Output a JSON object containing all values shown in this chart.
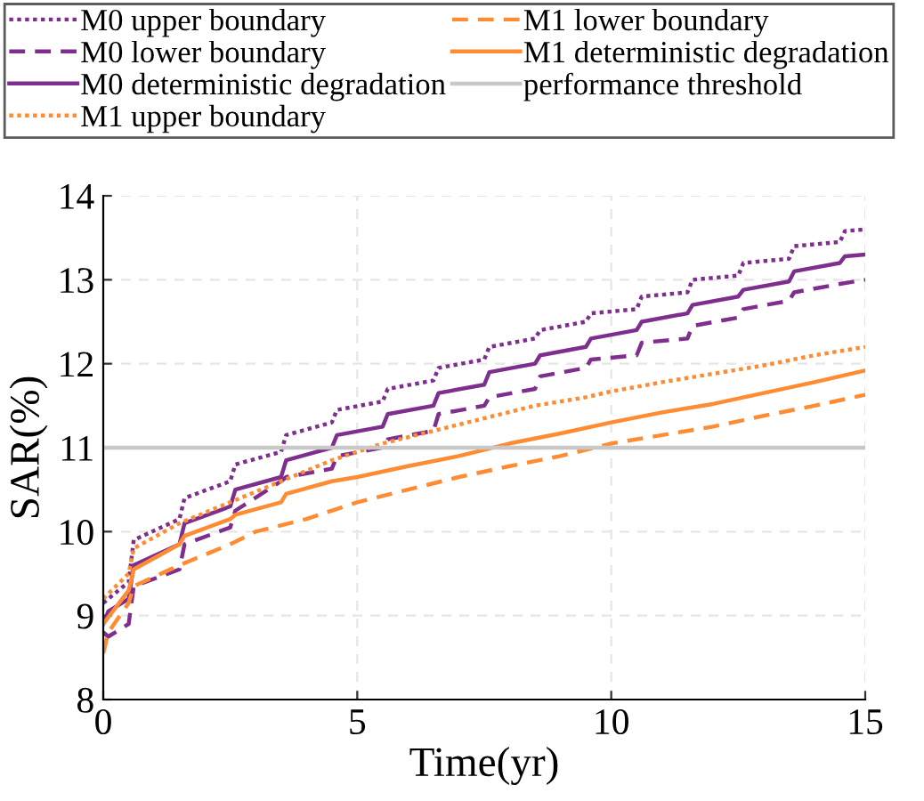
{
  "chart_data": {
    "type": "line",
    "xlabel": "Time(yr)",
    "ylabel": "SAR(%)",
    "xlim": [
      0,
      15
    ],
    "xticks": [
      0,
      5,
      10,
      15
    ],
    "ylim": [
      8,
      14
    ],
    "yticks": [
      8,
      9,
      10,
      11,
      12,
      13,
      14
    ],
    "grid": true,
    "legend": "top",
    "marker": "none",
    "series": [
      {
        "name": "M0 upper boundary",
        "color": "#7e2f8e",
        "line_style": "dotted",
        "x": [
          0,
          0.5,
          0.6,
          1.5,
          1.6,
          2.5,
          2.6,
          3.5,
          3.6,
          4.5,
          4.6,
          5.5,
          5.6,
          6.5,
          6.6,
          7.5,
          7.6,
          8.5,
          8.6,
          9.5,
          9.6,
          10.5,
          10.6,
          11.5,
          11.6,
          12.5,
          12.6,
          13.5,
          13.6,
          14.5,
          14.6,
          15
        ],
        "values": [
          9.15,
          9.4,
          9.9,
          10.15,
          10.4,
          10.6,
          10.8,
          10.95,
          11.15,
          11.3,
          11.45,
          11.55,
          11.7,
          11.8,
          11.95,
          12.05,
          12.2,
          12.3,
          12.4,
          12.5,
          12.6,
          12.65,
          12.8,
          12.85,
          13.0,
          13.05,
          13.2,
          13.25,
          13.4,
          13.45,
          13.58,
          13.6
        ]
      },
      {
        "name": "M0 lower boundary",
        "color": "#7e2f8e",
        "line_style": "dashed",
        "x": [
          0,
          0.1,
          0.5,
          0.6,
          1.5,
          1.6,
          2.5,
          2.6,
          3.5,
          3.6,
          4.5,
          4.6,
          5.5,
          5.6,
          6.5,
          6.6,
          7.5,
          7.6,
          8.5,
          8.6,
          9.5,
          9.6,
          10.5,
          10.6,
          11.5,
          11.6,
          12.5,
          12.6,
          13.5,
          13.6,
          14.5,
          15
        ],
        "values": [
          8.8,
          8.75,
          8.9,
          9.35,
          9.55,
          9.85,
          10.05,
          10.25,
          10.6,
          10.65,
          10.75,
          10.9,
          11.0,
          11.1,
          11.2,
          11.4,
          11.5,
          11.6,
          11.7,
          11.85,
          11.95,
          12.05,
          12.1,
          12.25,
          12.3,
          12.45,
          12.55,
          12.65,
          12.75,
          12.85,
          12.95,
          13.0
        ]
      },
      {
        "name": "M0 deterministic degradation",
        "color": "#7e2f8e",
        "line_style": "solid",
        "x": [
          0,
          0.1,
          0.5,
          0.6,
          1.5,
          1.6,
          2.5,
          2.6,
          3.5,
          3.6,
          4.5,
          4.6,
          5.5,
          5.6,
          6.5,
          6.6,
          7.5,
          7.6,
          8.5,
          8.6,
          9.5,
          9.6,
          10.5,
          10.6,
          11.5,
          11.6,
          12.5,
          12.6,
          13.5,
          13.6,
          14.5,
          14.6,
          15
        ],
        "values": [
          8.9,
          9.05,
          9.2,
          9.6,
          9.85,
          10.1,
          10.3,
          10.5,
          10.65,
          10.85,
          11.0,
          11.15,
          11.25,
          11.4,
          11.5,
          11.65,
          11.75,
          11.9,
          12.0,
          12.1,
          12.2,
          12.3,
          12.4,
          12.5,
          12.6,
          12.7,
          12.8,
          12.88,
          12.98,
          13.1,
          13.2,
          13.28,
          13.3
        ]
      },
      {
        "name": "M1 upper boundary",
        "color": "#ff8c33",
        "line_style": "dotted",
        "x": [
          0,
          0.5,
          0.6,
          1.5,
          2.5,
          3.5,
          4.5,
          5.5,
          6.5,
          7.5,
          8.5,
          9.5,
          10,
          11,
          12,
          13,
          14,
          15
        ],
        "values": [
          9.2,
          9.5,
          9.8,
          10.1,
          10.35,
          10.6,
          10.85,
          11.05,
          11.2,
          11.35,
          11.5,
          11.6,
          11.67,
          11.78,
          11.88,
          11.98,
          12.1,
          12.2
        ]
      },
      {
        "name": "M1 lower boundary",
        "color": "#ff8c33",
        "line_style": "dashed",
        "x": [
          0,
          0.1,
          0.5,
          0.6,
          1.5,
          2.5,
          3,
          4,
          5,
          6,
          7,
          8,
          9,
          10,
          11,
          12,
          13,
          14,
          15
        ],
        "values": [
          8.55,
          8.8,
          9.15,
          9.35,
          9.6,
          9.85,
          10.0,
          10.15,
          10.35,
          10.5,
          10.65,
          10.78,
          10.9,
          11.05,
          11.15,
          11.25,
          11.38,
          11.5,
          11.63
        ]
      },
      {
        "name": "M1 deterministic degradation",
        "color": "#ff8c33",
        "line_style": "solid",
        "x": [
          0,
          0.5,
          0.6,
          1.5,
          1.6,
          2.5,
          2.6,
          3.5,
          3.6,
          4.5,
          5,
          6,
          7,
          8,
          9,
          10,
          11,
          12,
          13,
          14,
          15
        ],
        "values": [
          8.9,
          9.3,
          9.55,
          9.85,
          9.95,
          10.15,
          10.2,
          10.35,
          10.45,
          10.6,
          10.65,
          10.78,
          10.9,
          11.05,
          11.17,
          11.3,
          11.42,
          11.52,
          11.65,
          11.78,
          11.92
        ]
      }
    ],
    "ref_lines": [
      {
        "axis": "y",
        "value": 11,
        "label": "performance threshold",
        "color": "#c8c8c8",
        "line_style": "solid"
      }
    ]
  }
}
